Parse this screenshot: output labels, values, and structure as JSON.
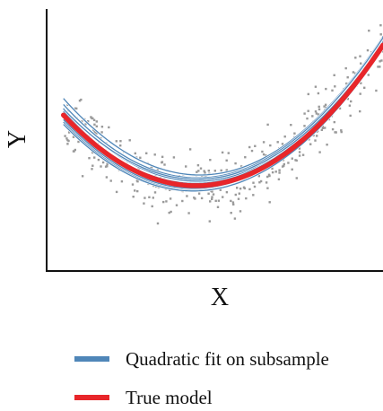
{
  "chart_data": {
    "type": "scatter",
    "xlabel": "X",
    "ylabel": "Y",
    "xlim": [
      0,
      10
    ],
    "ylim": [
      0,
      10
    ],
    "ticks": "none",
    "grid": false,
    "legend_position": "bottom",
    "true_model": {
      "name": "True model",
      "color": "#e8262a",
      "x": [
        0.5,
        10
      ],
      "coefficients": [
        6.68,
        -1.542,
        0.1736
      ]
    },
    "subsample_fits": {
      "name": "Quadratic fit on subsample",
      "color": "#4f86b8",
      "x": [
        0.5,
        10
      ],
      "fits": [
        [
          7.35,
          -1.62,
          0.178
        ],
        [
          6.95,
          -1.57,
          0.175
        ],
        [
          6.6,
          -1.55,
          0.176
        ],
        [
          6.4,
          -1.51,
          0.172
        ],
        [
          6.85,
          -1.6,
          0.18
        ],
        [
          6.3,
          -1.49,
          0.171
        ],
        [
          7.1,
          -1.58,
          0.176
        ],
        [
          6.75,
          -1.54,
          0.174
        ],
        [
          6.5,
          -1.53,
          0.175
        ],
        [
          6.9,
          -1.52,
          0.17
        ]
      ]
    },
    "points": {
      "color": "#9a9a9a",
      "count": 450,
      "x_range": [
        0.5,
        10
      ],
      "noise_sd": 0.55
    }
  },
  "legend": {
    "items": [
      {
        "label": "Quadratic fit on subsample",
        "color": "#4f86b8"
      },
      {
        "label": "True model",
        "color": "#e8262a"
      }
    ]
  }
}
